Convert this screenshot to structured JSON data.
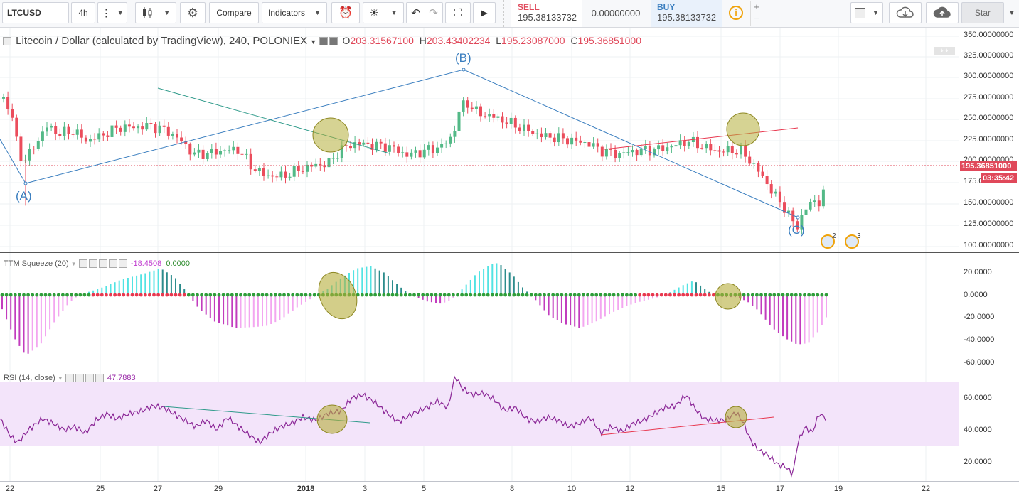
{
  "toolbar": {
    "symbol": "LTCUSD",
    "interval": "4h",
    "compare_label": "Compare",
    "indicators_label": "Indicators",
    "sell_label": "SELL",
    "sell_price": "195.38133732",
    "spread": "0.00000000",
    "buy_label": "BUY",
    "buy_price": "195.38133732",
    "star_label": "Star"
  },
  "main_legend": {
    "title": "Litecoin / Dollar (calculated by TradingView), 240, POLONIEX",
    "o_label": "O",
    "o_value": "203.31567100",
    "h_label": "H",
    "h_value": "203.43402234",
    "l_label": "L",
    "l_value": "195.23087000",
    "c_label": "C",
    "c_value": "195.36851000"
  },
  "annotations": {
    "a": "(A)",
    "b": "(B)",
    "c": "(C)",
    "event1": "2",
    "event2": "3"
  },
  "price_axis": {
    "labels": [
      "350.00000000",
      "325.00000000",
      "300.00000000",
      "275.00000000",
      "250.00000000",
      "225.00000000",
      "200.00000000",
      "175.00000000",
      "150.00000000",
      "125.00000000",
      "100.00000000"
    ],
    "last_price": "195.36851000",
    "countdown": "03:35:42"
  },
  "ttm": {
    "name": "TTM Squeeze (20)",
    "value1": "-18.4508",
    "value2": "0.0000",
    "axis": [
      "20.0000",
      "0.0000",
      "-20.0000",
      "-40.0000",
      "-60.0000"
    ]
  },
  "rsi": {
    "name": "RSI (14, close)",
    "value": "47.7883",
    "axis": [
      "60.0000",
      "40.0000",
      "20.0000"
    ]
  },
  "time_axis": [
    "22",
    "25",
    "27",
    "29",
    "2018",
    "3",
    "5",
    "8",
    "10",
    "12",
    "15",
    "17",
    "19",
    "22"
  ],
  "colors": {
    "up": "#53b987",
    "down": "#eb4d5c",
    "trend_blue": "#3a7ebf",
    "trend_teal": "#2e9a8a",
    "trend_red": "#e8384f",
    "highlight": "#b5ae3a"
  }
}
